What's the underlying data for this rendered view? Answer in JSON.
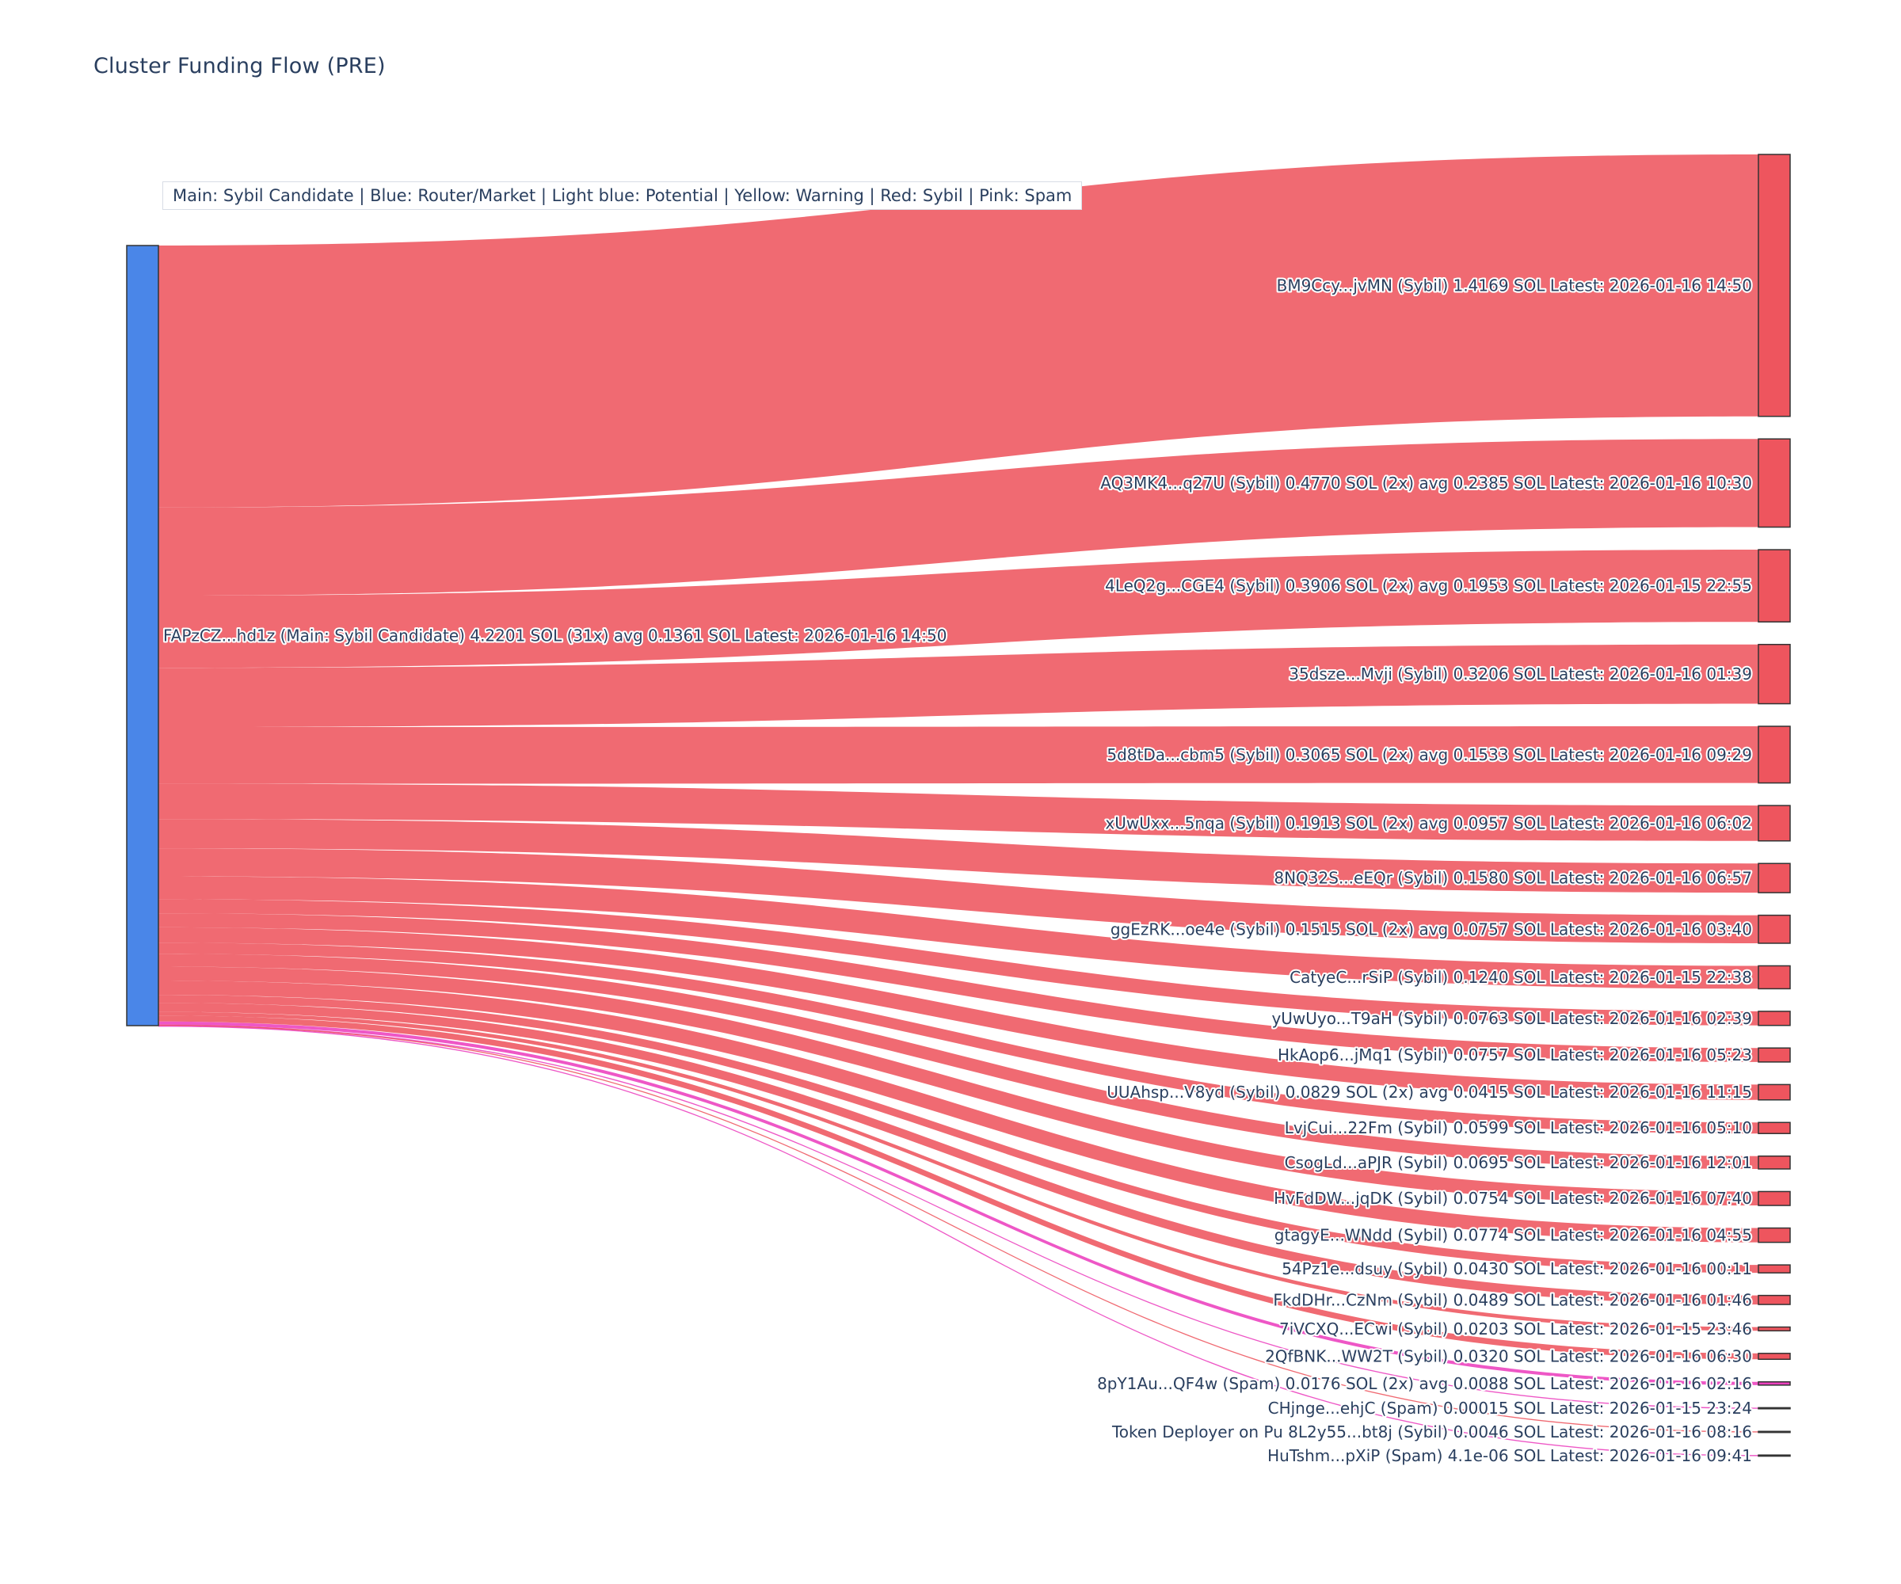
{
  "title": "Cluster Funding Flow (PRE)",
  "legend_note": "Main: Sybil Candidate  |  Blue: Router/Market | Light blue: Potential | Yellow: Warning | Red: Sybil | Pink: Spam",
  "colors": {
    "main_node": "#4a86e8",
    "sybil": "#ee555e",
    "spam": "#ec40be",
    "node_border": "#333333",
    "text": "#2a3f5f"
  },
  "chart_data": {
    "type": "sankey",
    "unit": "SOL",
    "title": "Cluster Funding Flow (PRE)",
    "legend": "Main: Sybil Candidate  |  Blue: Router/Market | Light blue: Potential | Yellow: Warning | Red: Sybil | Pink: Spam",
    "total_sol": 4.2201,
    "source": {
      "id": "FAPzCZ...hd1z",
      "classification": "Main: Sybil Candidate",
      "sol": 4.2201,
      "tx_count": 31,
      "avg_sol": 0.1361,
      "latest": "2026-01-16 14:50",
      "label": "FAPzCZ...hd1z (Main: Sybil Candidate) 4.2201 SOL (31x) avg 0.1361 SOL Latest: 2026-01-16 14:50"
    },
    "targets": [
      {
        "id": "BM9Ccy...jvMN",
        "classification": "Sybil",
        "sol": 1.4169,
        "latest": "2026-01-16 14:50",
        "label": "BM9Ccy...jvMN (Sybil) 1.4169 SOL Latest: 2026-01-16 14:50"
      },
      {
        "id": "AQ3MK4...q27U",
        "classification": "Sybil",
        "sol": 0.477,
        "tx_count": 2,
        "avg_sol": 0.2385,
        "latest": "2026-01-16 10:30",
        "label": "AQ3MK4...q27U (Sybil) 0.4770 SOL (2x) avg 0.2385 SOL Latest: 2026-01-16 10:30"
      },
      {
        "id": "4LeQ2g...CGE4",
        "classification": "Sybil",
        "sol": 0.3906,
        "tx_count": 2,
        "avg_sol": 0.1953,
        "latest": "2026-01-15 22:55",
        "label": "4LeQ2g...CGE4 (Sybil) 0.3906 SOL (2x) avg 0.1953 SOL Latest: 2026-01-15 22:55"
      },
      {
        "id": "35dsze...Mvji",
        "classification": "Sybil",
        "sol": 0.3206,
        "latest": "2026-01-16 01:39",
        "label": "35dsze...Mvji (Sybil) 0.3206 SOL Latest: 2026-01-16 01:39"
      },
      {
        "id": "5d8tDa...cbm5",
        "classification": "Sybil",
        "sol": 0.3065,
        "tx_count": 2,
        "avg_sol": 0.1533,
        "latest": "2026-01-16 09:29",
        "label": "5d8tDa...cbm5 (Sybil) 0.3065 SOL (2x) avg 0.1533 SOL Latest: 2026-01-16 09:29"
      },
      {
        "id": "xUwUxx...5nqa",
        "classification": "Sybil",
        "sol": 0.1913,
        "tx_count": 2,
        "avg_sol": 0.0957,
        "latest": "2026-01-16 06:02",
        "label": "xUwUxx...5nqa (Sybil) 0.1913 SOL (2x) avg 0.0957 SOL Latest: 2026-01-16 06:02"
      },
      {
        "id": "8NQ32S...eEQr",
        "classification": "Sybil",
        "sol": 0.158,
        "latest": "2026-01-16 06:57",
        "label": "8NQ32S...eEQr (Sybil) 0.1580 SOL Latest: 2026-01-16 06:57"
      },
      {
        "id": "ggEzRK...oe4e",
        "classification": "Sybil",
        "sol": 0.1515,
        "tx_count": 2,
        "avg_sol": 0.0757,
        "latest": "2026-01-16 03:40",
        "label": "ggEzRK...oe4e (Sybil) 0.1515 SOL (2x) avg 0.0757 SOL Latest: 2026-01-16 03:40"
      },
      {
        "id": "CatyeC...rSiP",
        "classification": "Sybil",
        "sol": 0.124,
        "latest": "2026-01-15 22:38",
        "label": "CatyeC...rSiP (Sybil) 0.1240 SOL Latest: 2026-01-15 22:38"
      },
      {
        "id": "yUwUyo...T9aH",
        "classification": "Sybil",
        "sol": 0.0763,
        "latest": "2026-01-16 02:39",
        "label": "yUwUyo...T9aH (Sybil) 0.0763 SOL Latest: 2026-01-16 02:39"
      },
      {
        "id": "HkAop6...jMq1",
        "classification": "Sybil",
        "sol": 0.0757,
        "latest": "2026-01-16 05:23",
        "label": "HkAop6...jMq1 (Sybil) 0.0757 SOL Latest: 2026-01-16 05:23"
      },
      {
        "id": "UUAhsp...V8yd",
        "classification": "Sybil",
        "sol": 0.0829,
        "tx_count": 2,
        "avg_sol": 0.0415,
        "latest": "2026-01-16 11:15",
        "label": "UUAhsp...V8yd (Sybil) 0.0829 SOL (2x) avg 0.0415 SOL Latest: 2026-01-16 11:15"
      },
      {
        "id": "LvjCui...22Fm",
        "classification": "Sybil",
        "sol": 0.0599,
        "latest": "2026-01-16 05:10",
        "label": "LvjCui...22Fm (Sybil) 0.0599 SOL Latest: 2026-01-16 05:10"
      },
      {
        "id": "CsogLd...aPJR",
        "classification": "Sybil",
        "sol": 0.0695,
        "latest": "2026-01-16 12:01",
        "label": "CsogLd...aPJR (Sybil) 0.0695 SOL Latest: 2026-01-16 12:01"
      },
      {
        "id": "HvFdDW...jqDK",
        "classification": "Sybil",
        "sol": 0.0754,
        "latest": "2026-01-16 07:40",
        "label": "HvFdDW...jqDK (Sybil) 0.0754 SOL Latest: 2026-01-16 07:40"
      },
      {
        "id": "gtagyE...WNdd",
        "classification": "Sybil",
        "sol": 0.0774,
        "latest": "2026-01-16 04:55",
        "label": "gtagyE...WNdd (Sybil) 0.0774 SOL Latest: 2026-01-16 04:55"
      },
      {
        "id": "54Pz1e...dsuy",
        "classification": "Sybil",
        "sol": 0.043,
        "latest": "2026-01-16 00:11",
        "label": "54Pz1e...dsuy (Sybil) 0.0430 SOL Latest: 2026-01-16 00:11"
      },
      {
        "id": "FkdDHr...CzNm",
        "classification": "Sybil",
        "sol": 0.0489,
        "latest": "2026-01-16 01:46",
        "label": "FkdDHr...CzNm (Sybil) 0.0489 SOL Latest: 2026-01-16 01:46"
      },
      {
        "id": "7iVCXQ...ECwi",
        "classification": "Sybil",
        "sol": 0.0203,
        "latest": "2026-01-15 23:46",
        "label": "7iVCXQ...ECwi (Sybil) 0.0203 SOL Latest: 2026-01-15 23:46"
      },
      {
        "id": "2QfBNK...WW2T",
        "classification": "Sybil",
        "sol": 0.032,
        "latest": "2026-01-16 06:30",
        "label": "2QfBNK...WW2T (Sybil) 0.0320 SOL Latest: 2026-01-16 06:30"
      },
      {
        "id": "8pY1Au...QF4w",
        "classification": "Spam",
        "sol": 0.0176,
        "tx_count": 2,
        "avg_sol": 0.0088,
        "latest": "2026-01-16 02:16",
        "label": "8pY1Au...QF4w (Spam) 0.0176 SOL (2x) avg 0.0088 SOL Latest: 2026-01-16 02:16"
      },
      {
        "id": "CHjnge...ehjC",
        "classification": "Spam",
        "sol": 0.00015,
        "latest": "2026-01-15 23:24",
        "label": "CHjnge...ehjC (Spam) 0.00015 SOL Latest: 2026-01-15 23:24"
      },
      {
        "id": "8L2y55...bt8j",
        "classification": "Sybil",
        "sol": 0.0046,
        "latest": "2026-01-16 08:16",
        "label": "Token Deployer on Pu 8L2y55...bt8j (Sybil) 0.0046 SOL Latest: 2026-01-16 08:16"
      },
      {
        "id": "HuTshm...pXiP",
        "classification": "Spam",
        "sol": 4.1e-06,
        "latest": "2026-01-16 09:41",
        "label": "HuTshm...pXiP (Spam) 4.1e-06 SOL Latest: 2026-01-16 09:41"
      }
    ]
  }
}
